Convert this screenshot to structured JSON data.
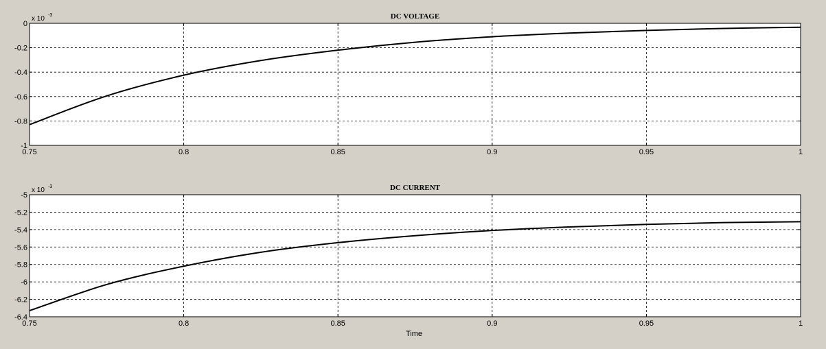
{
  "figure": {
    "background": "#d4d0c8",
    "plot_background": "#ffffff",
    "line_color": "#000000"
  },
  "xlabel": "Time",
  "chart_data": [
    {
      "type": "line",
      "title": "DC VOLTAGE",
      "exponent_base": "x 10",
      "exponent_power": "-3",
      "xlim": [
        0.75,
        1.0
      ],
      "ylim": [
        -1.0,
        0.0
      ],
      "xticks": [
        0.75,
        0.8,
        0.85,
        0.9,
        0.95,
        1.0
      ],
      "xtick_labels": [
        "0.75",
        "0.8",
        "0.85",
        "0.9",
        "0.95",
        "1"
      ],
      "yticks": [
        0,
        -0.2,
        -0.4,
        -0.6,
        -0.8,
        -1.0
      ],
      "ytick_labels": [
        "0",
        "-0.2",
        "-0.4",
        "-0.6",
        "-0.8",
        "-1"
      ],
      "grid": true,
      "x": [
        0.75,
        0.775,
        0.8,
        0.825,
        0.85,
        0.875,
        0.9,
        0.925,
        0.95,
        0.975,
        1.0
      ],
      "y": [
        -0.83,
        -0.595,
        -0.425,
        -0.305,
        -0.22,
        -0.155,
        -0.11,
        -0.08,
        -0.058,
        -0.042,
        -0.032
      ]
    },
    {
      "type": "line",
      "title": "DC CURRENT",
      "exponent_base": "x 10",
      "exponent_power": "-3",
      "xlim": [
        0.75,
        1.0
      ],
      "ylim": [
        -6.4,
        -5.0
      ],
      "xticks": [
        0.75,
        0.8,
        0.85,
        0.9,
        0.95,
        1.0
      ],
      "xtick_labels": [
        "0.75",
        "0.8",
        "0.85",
        "0.9",
        "0.95",
        "1"
      ],
      "yticks": [
        -5,
        -5.2,
        -5.4,
        -5.6,
        -5.8,
        -6,
        -6.2,
        -6.4
      ],
      "ytick_labels": [
        "-5",
        "-5.2",
        "-5.4",
        "-5.6",
        "-5.8",
        "-6",
        "-6.2",
        "-6.4"
      ],
      "grid": true,
      "x": [
        0.75,
        0.775,
        0.8,
        0.825,
        0.85,
        0.875,
        0.9,
        0.925,
        0.95,
        0.975,
        1.0
      ],
      "y": [
        -6.33,
        -6.03,
        -5.82,
        -5.66,
        -5.55,
        -5.47,
        -5.41,
        -5.37,
        -5.34,
        -5.32,
        -5.31
      ]
    }
  ]
}
